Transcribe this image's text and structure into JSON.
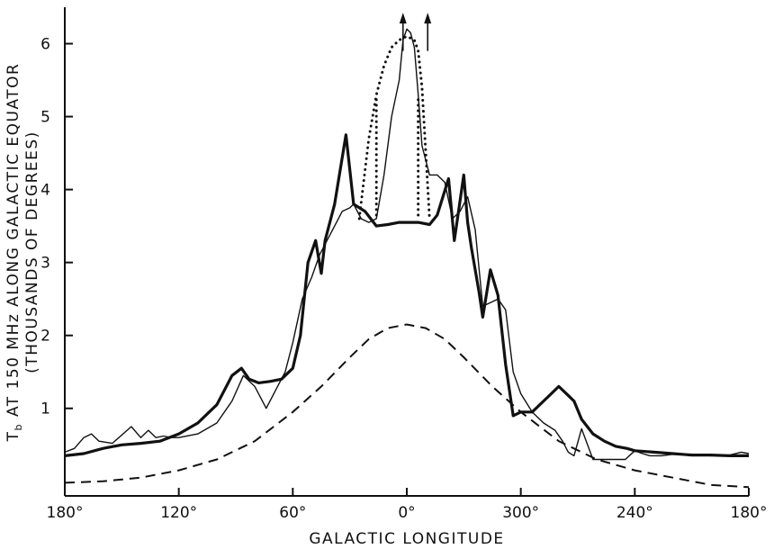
{
  "chart_data": {
    "type": "line",
    "title": "",
    "xlabel": "GALACTIC LONGITUDE",
    "ylabel": {
      "line1_main": "T",
      "line1_sub": "b",
      "line1_rest": " AT 150 MHz ALONG GALACTIC EQUATOR",
      "line2": "(THOUSANDS OF DEGREES)"
    },
    "x_axis_note": "Galactic longitude runs 180° → 0° → 180°; x values are given as position from left edge in degrees (0 = 180° left, 180 = 0°, 360 = 180° right).",
    "x_ticks": [
      {
        "x": 0,
        "label": "180°"
      },
      {
        "x": 60,
        "label": "120°"
      },
      {
        "x": 120,
        "label": "60°"
      },
      {
        "x": 180,
        "label": "0°"
      },
      {
        "x": 240,
        "label": "300°"
      },
      {
        "x": 300,
        "label": "240°"
      },
      {
        "x": 360,
        "label": "180°"
      }
    ],
    "y_ticks": [
      {
        "y": 1,
        "label": "1"
      },
      {
        "y": 2,
        "label": "2"
      },
      {
        "y": 3,
        "label": "3"
      },
      {
        "y": 4,
        "label": "4"
      },
      {
        "y": 5,
        "label": "5"
      },
      {
        "y": 6,
        "label": "6"
      }
    ],
    "xlim": [
      0,
      360
    ],
    "ylim": [
      -0.2,
      6.5
    ],
    "grid": false,
    "series": [
      {
        "name": "",
        "style": "thick",
        "x": [
          0,
          10,
          20,
          30,
          40,
          50,
          60,
          70,
          80,
          88,
          93,
          97,
          102,
          108,
          114,
          120,
          124,
          128,
          132,
          135,
          137,
          142,
          148,
          152,
          158,
          164,
          170,
          176,
          180,
          186,
          192,
          196,
          202,
          205,
          210,
          212,
          214,
          218,
          220,
          224,
          228,
          232,
          236,
          240,
          246,
          252,
          260,
          268,
          272,
          278,
          284,
          290,
          296,
          300,
          310,
          320,
          330,
          340,
          350,
          360
        ],
        "y": [
          0.35,
          0.38,
          0.45,
          0.5,
          0.52,
          0.55,
          0.65,
          0.8,
          1.05,
          1.45,
          1.55,
          1.4,
          1.35,
          1.37,
          1.4,
          1.55,
          2.0,
          3.0,
          3.3,
          2.85,
          3.3,
          3.8,
          4.75,
          3.8,
          3.7,
          3.5,
          3.52,
          3.55,
          3.55,
          3.55,
          3.52,
          3.65,
          4.15,
          3.3,
          4.2,
          3.55,
          3.2,
          2.6,
          2.25,
          2.9,
          2.55,
          1.6,
          0.9,
          0.95,
          0.95,
          1.1,
          1.3,
          1.1,
          0.85,
          0.65,
          0.55,
          0.48,
          0.45,
          0.42,
          0.4,
          0.38,
          0.36,
          0.36,
          0.35,
          0.35
        ]
      },
      {
        "name": "",
        "style": "thin",
        "x": [
          0,
          5,
          10,
          14,
          18,
          25,
          35,
          40,
          44,
          48,
          52,
          56,
          60,
          70,
          80,
          88,
          94,
          100,
          106,
          112,
          116,
          120,
          125,
          130,
          134,
          138,
          142,
          146,
          150,
          152,
          156,
          160,
          164,
          168,
          172,
          176,
          178,
          180,
          182,
          184,
          186,
          188,
          192,
          196,
          200,
          204,
          208,
          212,
          216,
          220,
          224,
          228,
          232,
          236,
          240,
          246,
          252,
          258,
          262,
          265,
          268,
          272,
          278,
          284,
          290,
          295,
          300,
          304,
          308,
          314,
          320,
          330,
          340,
          350,
          356,
          360
        ],
        "y": [
          0.4,
          0.45,
          0.6,
          0.65,
          0.55,
          0.52,
          0.75,
          0.6,
          0.7,
          0.6,
          0.62,
          0.6,
          0.6,
          0.65,
          0.8,
          1.1,
          1.45,
          1.3,
          1.0,
          1.3,
          1.5,
          1.9,
          2.5,
          2.8,
          3.1,
          3.3,
          3.5,
          3.7,
          3.75,
          3.8,
          3.6,
          3.55,
          3.6,
          4.2,
          5.0,
          5.5,
          6.05,
          6.2,
          6.15,
          5.95,
          5.3,
          4.6,
          4.2,
          4.2,
          4.1,
          3.6,
          3.7,
          3.9,
          3.45,
          2.4,
          2.45,
          2.5,
          2.35,
          1.5,
          1.2,
          0.95,
          0.8,
          0.7,
          0.55,
          0.4,
          0.35,
          0.72,
          0.3,
          0.3,
          0.3,
          0.3,
          0.42,
          0.38,
          0.35,
          0.35,
          0.37,
          0.36,
          0.35,
          0.36,
          0.4,
          0.38
        ]
      },
      {
        "name": "",
        "style": "dotted",
        "x": [
          155,
          160,
          164,
          168,
          172,
          176,
          180,
          184,
          186,
          188,
          190,
          192
        ],
        "y": [
          3.6,
          4.7,
          5.3,
          5.7,
          5.95,
          6.05,
          6.1,
          6.05,
          5.9,
          5.4,
          4.5,
          3.6
        ]
      },
      {
        "name": "",
        "style": "dashed",
        "x": [
          0,
          20,
          40,
          60,
          80,
          100,
          120,
          135,
          150,
          160,
          170,
          180,
          190,
          200,
          210,
          225,
          240,
          260,
          280,
          300,
          320,
          340,
          360
        ],
        "y": [
          -0.02,
          0.0,
          0.05,
          0.15,
          0.3,
          0.55,
          0.95,
          1.3,
          1.7,
          1.95,
          2.1,
          2.15,
          2.1,
          1.95,
          1.7,
          1.3,
          0.95,
          0.55,
          0.3,
          0.15,
          0.05,
          -0.05,
          -0.08
        ]
      }
    ],
    "annotations": [
      {
        "type": "dotted-vertical",
        "x": 164,
        "y_from": 3.65,
        "y_to": 5.3
      },
      {
        "type": "dotted-vertical",
        "x": 186,
        "y_from": 3.65,
        "y_to": 5.3
      },
      {
        "type": "arrow-up",
        "x": 178,
        "y_from": 5.9,
        "y_to": 6.35
      },
      {
        "type": "arrow-up",
        "x": 191,
        "y_from": 5.9,
        "y_to": 6.35
      }
    ]
  }
}
